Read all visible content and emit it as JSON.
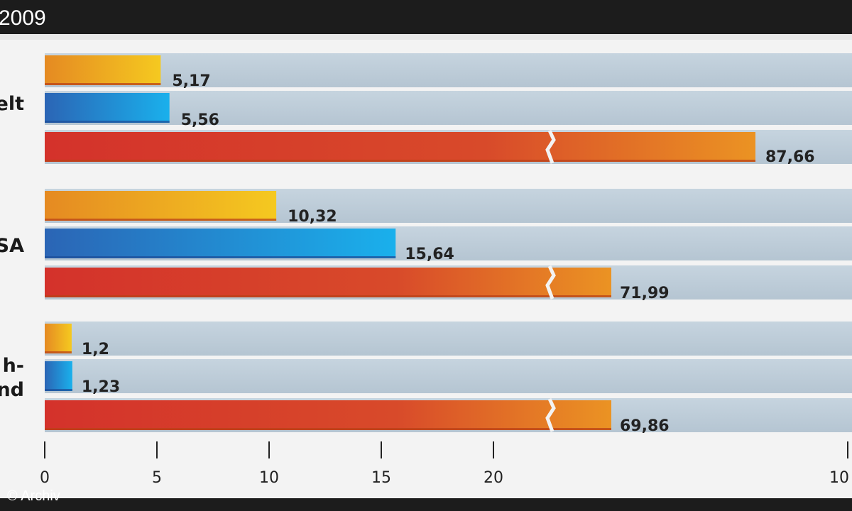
{
  "header": {
    "title": "2009"
  },
  "credit": "© Archiv",
  "colors": {
    "background": "#f3f3f3",
    "header": "#1c1c1c",
    "row_track": "#bcccd9",
    "series_1": "#f0b42a",
    "series_2": "#1f8fd6",
    "series_3": "#d8332b"
  },
  "chart_data": {
    "type": "bar",
    "orientation": "horizontal",
    "title": "2009",
    "categories": [
      "elt",
      "SA",
      "h-\nnd"
    ],
    "series": [
      {
        "values": [
          5.17,
          10.32,
          1.2
        ],
        "labels": [
          "5,17",
          "10,32",
          "1,2"
        ]
      },
      {
        "values": [
          5.56,
          15.64,
          1.23
        ],
        "labels": [
          "5,56",
          "15,64",
          "1,23"
        ]
      },
      {
        "values": [
          87.66,
          71.99,
          69.86
        ],
        "labels": [
          "87,66",
          "71,99",
          "69,86"
        ],
        "axis_break": true
      }
    ],
    "x_ticks": [
      "0",
      "5",
      "10",
      "15",
      "20",
      "10"
    ],
    "xlim": [
      0,
      35
    ],
    "axis_break_at": 22.5,
    "grid": false
  }
}
